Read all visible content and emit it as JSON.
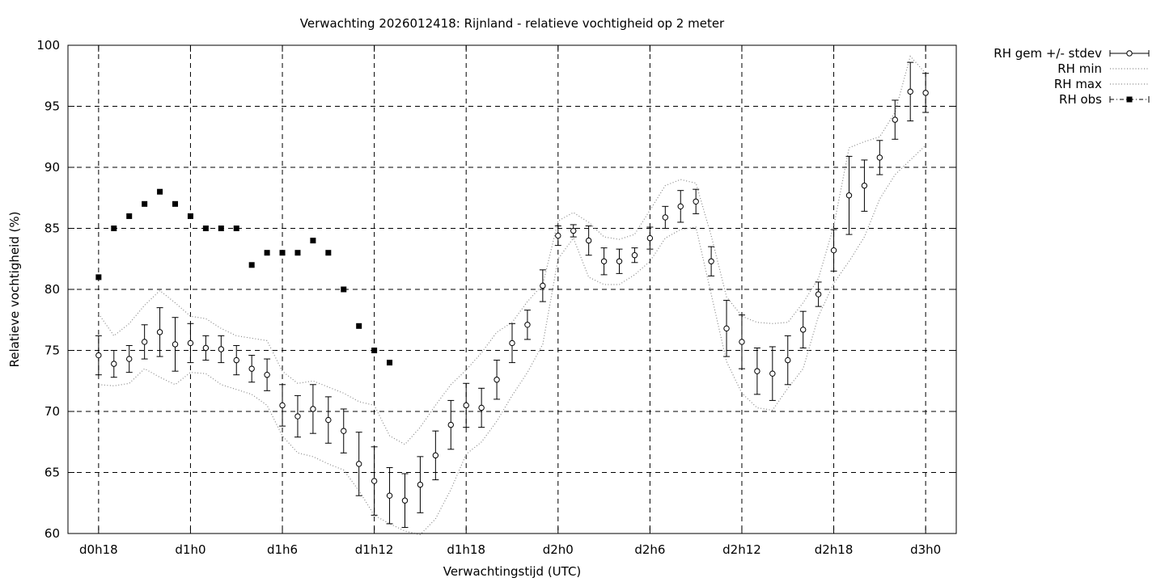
{
  "chart_data": {
    "type": "line",
    "title": "Verwachting 2026012418: Rijnland - relatieve vochtigheid op 2 meter",
    "xlabel": "Verwachtingstijd (UTC)",
    "ylabel": "Relatieve vochtigheid (%)",
    "xlim": [
      -2,
      56
    ],
    "ylim": [
      60,
      100
    ],
    "x_unit": "hours since d0h18",
    "x_ticks": [
      {
        "x": 0,
        "label": "d0h18"
      },
      {
        "x": 6,
        "label": "d1h0"
      },
      {
        "x": 12,
        "label": "d1h6"
      },
      {
        "x": 18,
        "label": "d1h12"
      },
      {
        "x": 24,
        "label": "d1h18"
      },
      {
        "x": 30,
        "label": "d2h0"
      },
      {
        "x": 36,
        "label": "d2h6"
      },
      {
        "x": 42,
        "label": "d2h12"
      },
      {
        "x": 48,
        "label": "d2h18"
      },
      {
        "x": 54,
        "label": "d3h0"
      }
    ],
    "y_ticks": [
      "60",
      "65",
      "70",
      "75",
      "80",
      "85",
      "90",
      "95",
      "100"
    ],
    "grid": true,
    "legend_position": "right-outside-top",
    "series": [
      {
        "name": "RH gem +/- stdev",
        "style": "errorbar",
        "x": [
          0,
          1,
          2,
          3,
          4,
          5,
          6,
          7,
          8,
          9,
          10,
          11,
          12,
          13,
          14,
          15,
          16,
          17,
          18,
          19,
          20,
          21,
          22,
          23,
          24,
          25,
          26,
          27,
          28,
          29,
          30,
          31,
          32,
          33,
          34,
          35,
          36,
          37,
          38,
          39,
          40,
          41,
          42,
          43,
          44,
          45,
          46,
          47,
          48,
          49,
          50,
          51,
          52,
          53,
          54
        ],
        "y": [
          74.6,
          73.9,
          74.3,
          75.7,
          76.5,
          75.5,
          75.6,
          75.2,
          75.1,
          74.2,
          73.5,
          73.0,
          70.5,
          69.6,
          70.2,
          69.3,
          68.4,
          65.7,
          64.3,
          63.1,
          62.7,
          64.0,
          66.4,
          68.9,
          70.5,
          70.3,
          72.6,
          75.6,
          77.1,
          80.3,
          84.4,
          84.8,
          84.0,
          82.3,
          82.3,
          82.8,
          84.2,
          85.9,
          86.8,
          87.2,
          82.3,
          76.8,
          75.7,
          73.3,
          73.1,
          74.2,
          76.7,
          79.6,
          83.2,
          87.7,
          88.5,
          90.8,
          93.9,
          96.2,
          96.1
        ],
        "err": [
          1.6,
          1.1,
          1.1,
          1.4,
          2.0,
          2.2,
          1.6,
          1.0,
          1.1,
          1.2,
          1.1,
          1.3,
          1.7,
          1.7,
          2.0,
          1.9,
          1.8,
          2.6,
          2.8,
          2.3,
          2.2,
          2.3,
          2.0,
          2.0,
          1.8,
          1.6,
          1.6,
          1.6,
          1.2,
          1.3,
          0.8,
          0.5,
          1.2,
          1.1,
          1.0,
          0.6,
          0.9,
          0.9,
          1.3,
          1.0,
          1.2,
          2.3,
          2.2,
          1.9,
          2.2,
          2.0,
          1.5,
          1.0,
          1.7,
          3.2,
          2.1,
          1.4,
          1.6,
          2.4,
          1.6
        ]
      },
      {
        "name": "RH min",
        "style": "dotted",
        "x": [
          0,
          1,
          2,
          3,
          4,
          5,
          6,
          7,
          8,
          9,
          10,
          11,
          12,
          13,
          14,
          15,
          16,
          17,
          18,
          19,
          20,
          21,
          22,
          23,
          24,
          25,
          26,
          27,
          28,
          29,
          30,
          31,
          32,
          33,
          34,
          35,
          36,
          37,
          38,
          39,
          40,
          41,
          42,
          43,
          44,
          45,
          46,
          47,
          48,
          49,
          50,
          51,
          52,
          53,
          54
        ],
        "y": [
          72.2,
          72.1,
          72.3,
          73.5,
          72.8,
          72.2,
          73.2,
          73.1,
          72.2,
          71.8,
          71.4,
          70.5,
          68.0,
          66.6,
          66.3,
          65.7,
          65.2,
          63.5,
          61.5,
          60.8,
          60.2,
          59.9,
          61.2,
          63.6,
          66.5,
          67.5,
          69.2,
          71.3,
          73.2,
          75.5,
          82.5,
          84.2,
          81.0,
          80.4,
          80.4,
          81.2,
          82.3,
          84.2,
          84.9,
          85.1,
          79.6,
          74.1,
          71.5,
          70.3,
          70.1,
          71.9,
          73.5,
          77.8,
          80.5,
          82.3,
          84.3,
          87.4,
          89.4,
          90.6,
          91.8
        ]
      },
      {
        "name": "RH max",
        "style": "dotted",
        "x": [
          0,
          1,
          2,
          3,
          4,
          5,
          6,
          7,
          8,
          9,
          10,
          11,
          12,
          13,
          14,
          15,
          16,
          17,
          18,
          19,
          20,
          21,
          22,
          23,
          24,
          25,
          26,
          27,
          28,
          29,
          30,
          31,
          32,
          33,
          34,
          35,
          36,
          37,
          38,
          39,
          40,
          41,
          42,
          43,
          44,
          45,
          46,
          47,
          48,
          49,
          50,
          51,
          52,
          53,
          54
        ],
        "y": [
          78.0,
          76.2,
          77.2,
          78.7,
          79.9,
          78.9,
          77.8,
          77.6,
          76.8,
          76.2,
          76.0,
          75.8,
          73.3,
          72.3,
          72.5,
          72.0,
          71.5,
          70.8,
          70.5,
          68.0,
          67.3,
          68.7,
          70.5,
          72.2,
          73.4,
          74.8,
          76.5,
          77.3,
          79.0,
          80.4,
          85.6,
          86.3,
          85.5,
          84.3,
          84.1,
          84.5,
          86.5,
          88.5,
          89.0,
          88.7,
          84.4,
          79.4,
          77.8,
          77.3,
          77.2,
          77.3,
          78.9,
          80.9,
          85.2,
          91.6,
          92.1,
          92.5,
          94.5,
          99.1,
          97.7
        ]
      },
      {
        "name": "RH obs",
        "style": "points",
        "x": [
          0,
          1,
          2,
          3,
          4,
          5,
          6,
          7,
          8,
          9,
          10,
          11,
          12,
          13,
          14,
          15,
          16,
          17,
          18,
          19
        ],
        "y": [
          81,
          85,
          86,
          87,
          88,
          87,
          86,
          85,
          85,
          85,
          82,
          83,
          83,
          83,
          84,
          83,
          80,
          77,
          75,
          74
        ]
      }
    ]
  }
}
